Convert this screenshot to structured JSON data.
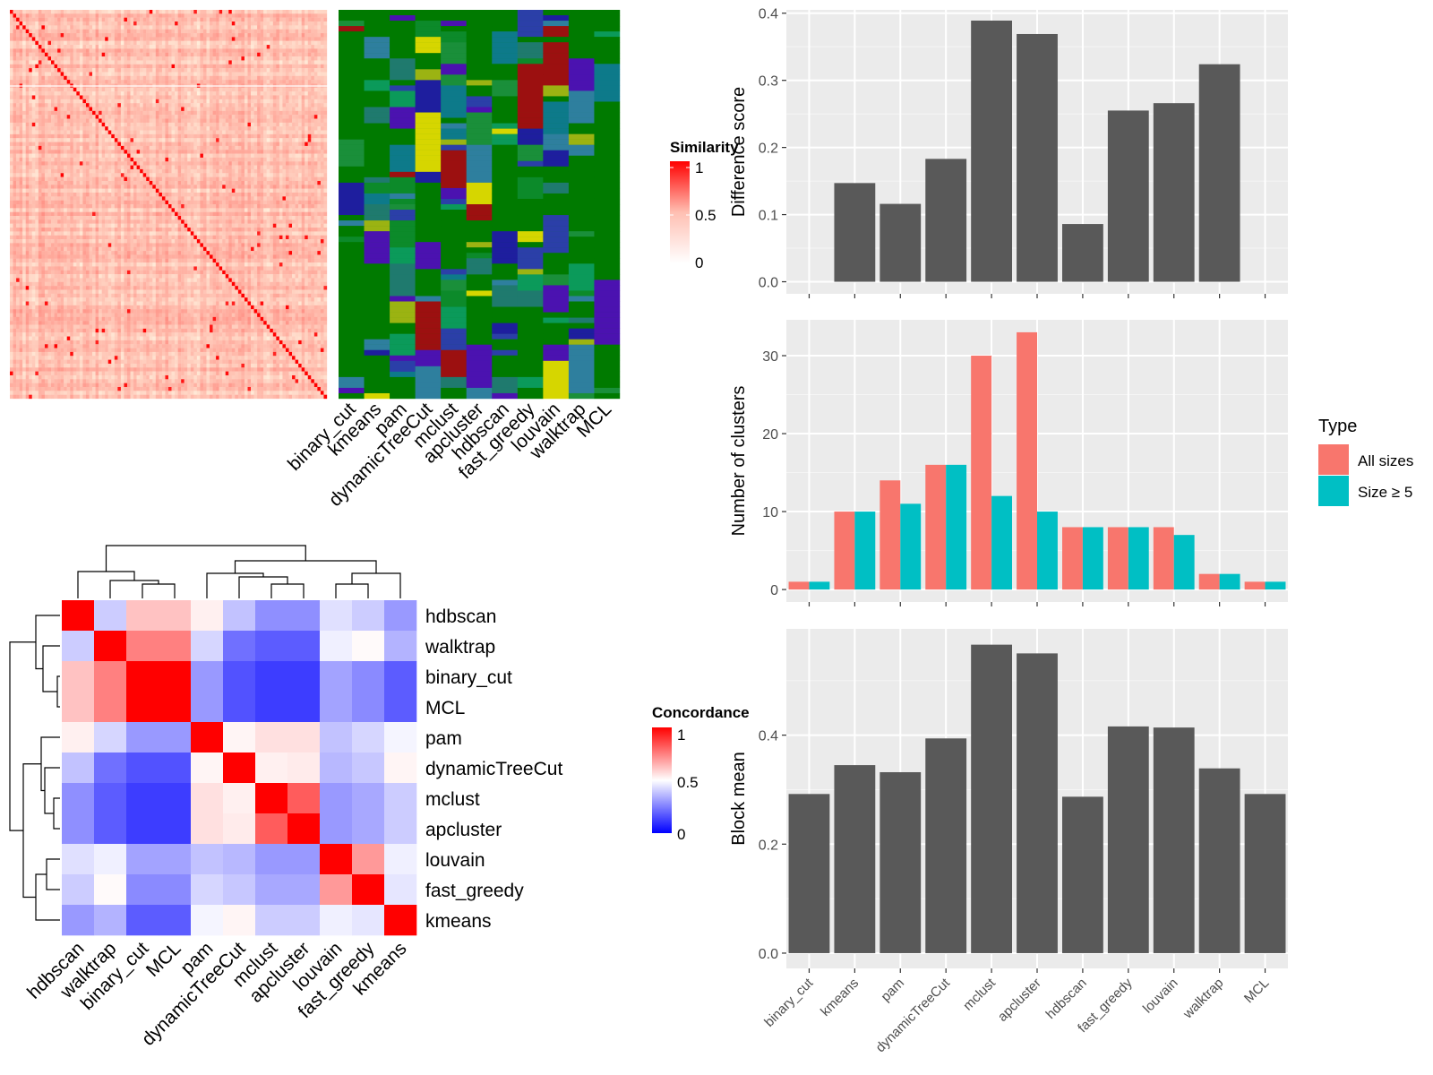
{
  "methods": [
    "binary_cut",
    "kmeans",
    "pam",
    "dynamicTreeCut",
    "mclust",
    "apcluster",
    "hdbscan",
    "fast_greedy",
    "louvain",
    "walktrap",
    "MCL"
  ],
  "colors": {
    "bar_gray": "#595959",
    "panel_bg": "#EBEBEB",
    "all_sizes": "#F8766D",
    "size_ge5": "#00BFC4",
    "sim_high": "#FF0000",
    "conc_low": "#0000FF",
    "membership_base": "#007A00"
  },
  "similarity_legend": {
    "title": "Similarity",
    "ticks": [
      "1",
      "0.5",
      "0"
    ]
  },
  "concordance_legend": {
    "title": "Concordance",
    "ticks": [
      "1",
      "0.5",
      "0"
    ]
  },
  "type_legend": {
    "title": "Type",
    "entries": [
      "All sizes",
      "Size ≥ 5"
    ]
  },
  "chart_data": [
    {
      "type": "heatmap",
      "name": "similarity-matrix-with-cluster-memberships",
      "legend_title": "Similarity",
      "range": [
        0,
        1
      ],
      "column_labels": [
        "binary_cut",
        "kmeans",
        "pam",
        "dynamicTreeCut",
        "mclust",
        "apcluster",
        "hdbscan",
        "fast_greedy",
        "louvain",
        "walktrap",
        "MCL"
      ]
    },
    {
      "type": "bar",
      "categories": [
        "binary_cut",
        "kmeans",
        "pam",
        "dynamicTreeCut",
        "mclust",
        "apcluster",
        "hdbscan",
        "fast_greedy",
        "louvain",
        "walktrap",
        "MCL"
      ],
      "values": [
        0,
        0.147,
        0.116,
        0.183,
        0.389,
        0.369,
        0.086,
        0.255,
        0.266,
        0.324,
        0
      ],
      "ylabel": "Difference score",
      "ylim": [
        -0.018,
        0.405
      ],
      "yticks": [
        0.0,
        0.1,
        0.2,
        0.3,
        0.4
      ],
      "ytick_labels": [
        "0.0",
        "0.1",
        "0.2",
        "0.3",
        "0.4"
      ],
      "grid": true
    },
    {
      "type": "bar",
      "categories": [
        "binary_cut",
        "kmeans",
        "pam",
        "dynamicTreeCut",
        "mclust",
        "apcluster",
        "hdbscan",
        "fast_greedy",
        "louvain",
        "walktrap",
        "MCL"
      ],
      "series": [
        {
          "name": "All sizes",
          "values": [
            1,
            10,
            14,
            16,
            30,
            33,
            8,
            8,
            8,
            2,
            1
          ]
        },
        {
          "name": "Size ≥ 5",
          "values": [
            1,
            10,
            11,
            16,
            12,
            10,
            8,
            8,
            7,
            2,
            1
          ]
        }
      ],
      "ylabel": "Number of clusters",
      "ylim": [
        -1.6,
        34.6
      ],
      "yticks": [
        0,
        10,
        20,
        30
      ],
      "ytick_labels": [
        "0",
        "10",
        "20",
        "30"
      ],
      "legend_title": "Type",
      "legend": "right",
      "grid": true
    },
    {
      "type": "bar",
      "categories": [
        "binary_cut",
        "kmeans",
        "pam",
        "dynamicTreeCut",
        "mclust",
        "apcluster",
        "hdbscan",
        "fast_greedy",
        "louvain",
        "walktrap",
        "MCL"
      ],
      "values": [
        0.292,
        0.345,
        0.332,
        0.394,
        0.566,
        0.55,
        0.287,
        0.416,
        0.414,
        0.339,
        0.292
      ],
      "ylabel": "Block mean",
      "ylim": [
        -0.028,
        0.595
      ],
      "yticks": [
        0.0,
        0.2,
        0.4
      ],
      "ytick_labels": [
        "0.0",
        "0.2",
        "0.4"
      ],
      "grid": true
    },
    {
      "type": "heatmap",
      "name": "method-concordance",
      "legend_title": "Concordance",
      "range": [
        0,
        1
      ],
      "row_labels": [
        "hdbscan",
        "walktrap",
        "binary_cut",
        "MCL",
        "pam",
        "dynamicTreeCut",
        "mclust",
        "apcluster",
        "louvain",
        "fast_greedy",
        "kmeans"
      ],
      "col_labels": [
        "hdbscan",
        "walktrap",
        "binary_cut",
        "MCL",
        "pam",
        "dynamicTreeCut",
        "mclust",
        "apcluster",
        "louvain",
        "fast_greedy",
        "kmeans"
      ],
      "values": [
        [
          1.0,
          0.4,
          0.62,
          0.62,
          0.53,
          0.38,
          0.28,
          0.28,
          0.44,
          0.4,
          0.3
        ],
        [
          0.4,
          1.0,
          0.75,
          0.75,
          0.42,
          0.22,
          0.18,
          0.18,
          0.47,
          0.51,
          0.35
        ],
        [
          0.62,
          0.75,
          1.0,
          1.0,
          0.3,
          0.16,
          0.12,
          0.12,
          0.32,
          0.27,
          0.18
        ],
        [
          0.62,
          0.75,
          1.0,
          1.0,
          0.3,
          0.16,
          0.12,
          0.12,
          0.32,
          0.27,
          0.18
        ],
        [
          0.53,
          0.42,
          0.3,
          0.3,
          1.0,
          0.52,
          0.56,
          0.56,
          0.38,
          0.42,
          0.48
        ],
        [
          0.38,
          0.22,
          0.16,
          0.16,
          0.52,
          1.0,
          0.53,
          0.54,
          0.36,
          0.39,
          0.52
        ],
        [
          0.28,
          0.18,
          0.12,
          0.12,
          0.56,
          0.53,
          1.0,
          0.82,
          0.3,
          0.33,
          0.4
        ],
        [
          0.28,
          0.18,
          0.12,
          0.12,
          0.56,
          0.54,
          0.82,
          1.0,
          0.3,
          0.33,
          0.4
        ],
        [
          0.44,
          0.47,
          0.32,
          0.32,
          0.38,
          0.36,
          0.3,
          0.3,
          1.0,
          0.7,
          0.47
        ],
        [
          0.4,
          0.51,
          0.27,
          0.27,
          0.42,
          0.39,
          0.33,
          0.33,
          0.7,
          1.0,
          0.45
        ],
        [
          0.3,
          0.35,
          0.18,
          0.18,
          0.48,
          0.52,
          0.4,
          0.4,
          0.47,
          0.45,
          1.0
        ]
      ]
    }
  ]
}
